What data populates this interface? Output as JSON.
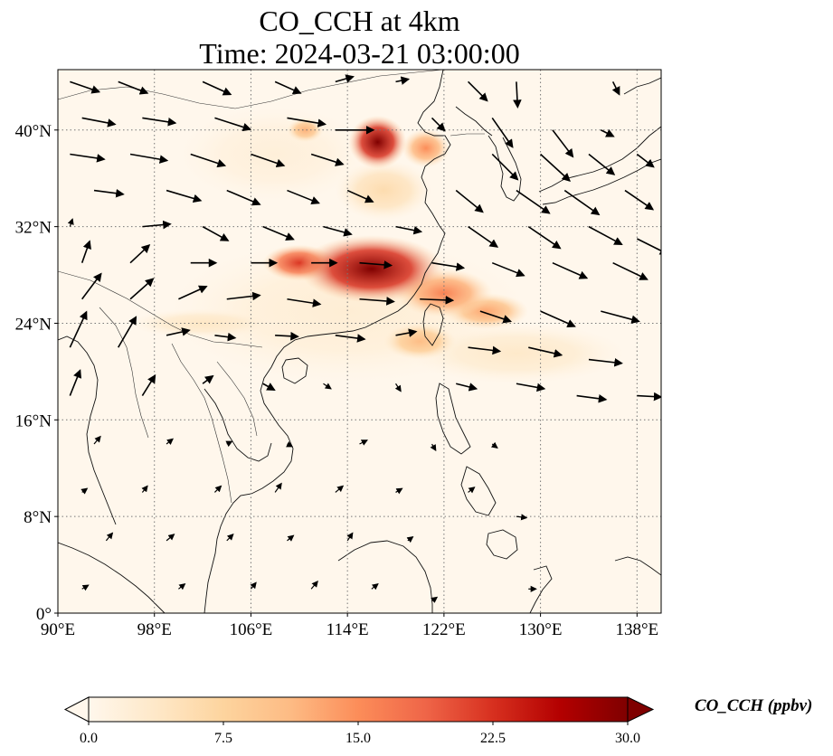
{
  "title": {
    "line1": "CO_CCH at 4km",
    "line2": "Time: 2024-03-21 03:00:00"
  },
  "map": {
    "lon_range": [
      90,
      140
    ],
    "lat_range": [
      0,
      45
    ],
    "lon_ticks": [
      {
        "value": 90,
        "label": "90°E"
      },
      {
        "value": 98,
        "label": "98°E"
      },
      {
        "value": 106,
        "label": "106°E"
      },
      {
        "value": 114,
        "label": "114°E"
      },
      {
        "value": 122,
        "label": "122°E"
      },
      {
        "value": 130,
        "label": "130°E"
      },
      {
        "value": 138,
        "label": "138°E"
      }
    ],
    "lat_ticks": [
      {
        "value": 0,
        "label": "0°"
      },
      {
        "value": 8,
        "label": "8°N"
      },
      {
        "value": 16,
        "label": "16°N"
      },
      {
        "value": 24,
        "label": "24°N"
      },
      {
        "value": 32,
        "label": "32°N"
      },
      {
        "value": 40,
        "label": "40°N"
      }
    ],
    "gridlines": "dotted",
    "plumes": [
      {
        "lon": 116.5,
        "lat": 39.0,
        "rlon": 2.4,
        "rlat": 2.2,
        "value": 30
      },
      {
        "lon": 120.5,
        "lat": 38.5,
        "rlon": 2.0,
        "rlat": 1.6,
        "value": 15
      },
      {
        "lon": 110.5,
        "lat": 40.0,
        "rlon": 1.5,
        "rlat": 1.0,
        "value": 12
      },
      {
        "lon": 116.0,
        "lat": 28.5,
        "rlon": 6.0,
        "rlat": 2.8,
        "value": 30
      },
      {
        "lon": 110.0,
        "lat": 29.0,
        "rlon": 3.0,
        "rlat": 1.5,
        "value": 22
      },
      {
        "lon": 122.0,
        "lat": 26.5,
        "rlon": 4.0,
        "rlat": 2.0,
        "value": 16
      },
      {
        "lon": 125.5,
        "lat": 25.0,
        "rlon": 3.5,
        "rlat": 1.5,
        "value": 13
      },
      {
        "lon": 120.0,
        "lat": 22.5,
        "rlon": 3.0,
        "rlat": 1.5,
        "value": 11
      },
      {
        "lon": 117.0,
        "lat": 35.0,
        "rlon": 4.0,
        "rlat": 2.5,
        "value": 6
      },
      {
        "lon": 102.0,
        "lat": 24.0,
        "rlon": 6.0,
        "rlat": 1.2,
        "value": 4
      },
      {
        "lon": 128.0,
        "lat": 21.5,
        "rlon": 9.0,
        "rlat": 2.5,
        "value": 3.5
      },
      {
        "lon": 114.0,
        "lat": 25.0,
        "rlon": 15.0,
        "rlat": 6.0,
        "value": 2.5
      },
      {
        "lon": 108.0,
        "lat": 38.0,
        "rlon": 8.0,
        "rlat": 4.0,
        "value": 2
      }
    ],
    "wind_vectors": [
      {
        "lon": 91,
        "lat": 44,
        "u": 2.3,
        "v": -0.8
      },
      {
        "lon": 95,
        "lat": 44,
        "u": 2.3,
        "v": -0.9
      },
      {
        "lon": 102,
        "lat": 44,
        "u": 2.2,
        "v": -1.0
      },
      {
        "lon": 108,
        "lat": 44,
        "u": 2.0,
        "v": -0.9
      },
      {
        "lon": 113,
        "lat": 44,
        "u": 1.4,
        "v": 0.4
      },
      {
        "lon": 118,
        "lat": 44,
        "u": 1.0,
        "v": 0.2
      },
      {
        "lon": 124,
        "lat": 44,
        "u": 1.5,
        "v": -1.5
      },
      {
        "lon": 128,
        "lat": 44,
        "u": 0.1,
        "v": -2.0
      },
      {
        "lon": 136,
        "lat": 44,
        "u": 0.5,
        "v": -1.0
      },
      {
        "lon": 92,
        "lat": 41,
        "u": 2.6,
        "v": -0.5
      },
      {
        "lon": 97,
        "lat": 41,
        "u": 2.6,
        "v": -0.4
      },
      {
        "lon": 103,
        "lat": 41,
        "u": 2.8,
        "v": -0.9
      },
      {
        "lon": 109,
        "lat": 41,
        "u": 3.0,
        "v": -0.5
      },
      {
        "lon": 113,
        "lat": 40,
        "u": 3.0,
        "v": 0.0
      },
      {
        "lon": 121,
        "lat": 41,
        "u": 1.0,
        "v": -1.0
      },
      {
        "lon": 126,
        "lat": 41,
        "u": 1.6,
        "v": -2.3
      },
      {
        "lon": 131,
        "lat": 40,
        "u": 1.6,
        "v": -2.1
      },
      {
        "lon": 135,
        "lat": 40,
        "u": 1.0,
        "v": -0.5
      },
      {
        "lon": 91,
        "lat": 38,
        "u": 2.7,
        "v": -0.4
      },
      {
        "lon": 96,
        "lat": 38,
        "u": 2.9,
        "v": -0.5
      },
      {
        "lon": 101,
        "lat": 38,
        "u": 2.7,
        "v": -0.9
      },
      {
        "lon": 106,
        "lat": 38,
        "u": 2.6,
        "v": -0.9
      },
      {
        "lon": 111,
        "lat": 38,
        "u": 2.5,
        "v": -0.8
      },
      {
        "lon": 126,
        "lat": 38,
        "u": 2.0,
        "v": -2.0
      },
      {
        "lon": 130,
        "lat": 38,
        "u": 2.3,
        "v": -2.1
      },
      {
        "lon": 134,
        "lat": 38,
        "u": 2.0,
        "v": -1.6
      },
      {
        "lon": 138,
        "lat": 38,
        "u": 1.3,
        "v": -1.0
      },
      {
        "lon": 93,
        "lat": 35,
        "u": 2.3,
        "v": -0.3
      },
      {
        "lon": 99,
        "lat": 35,
        "u": 2.7,
        "v": -0.8
      },
      {
        "lon": 104,
        "lat": 35,
        "u": 2.6,
        "v": -1.1
      },
      {
        "lon": 109,
        "lat": 35,
        "u": 2.5,
        "v": -1.0
      },
      {
        "lon": 114,
        "lat": 35,
        "u": 2.0,
        "v": -0.9
      },
      {
        "lon": 123,
        "lat": 35,
        "u": 2.1,
        "v": -1.7
      },
      {
        "lon": 128,
        "lat": 35,
        "u": 2.6,
        "v": -1.8
      },
      {
        "lon": 132,
        "lat": 35,
        "u": 2.7,
        "v": -1.9
      },
      {
        "lon": 137,
        "lat": 35,
        "u": 2.2,
        "v": -1.5
      },
      {
        "lon": 91,
        "lat": 32,
        "u": 0.2,
        "v": 0.6
      },
      {
        "lon": 97,
        "lat": 32,
        "u": 2.2,
        "v": 0.2
      },
      {
        "lon": 102,
        "lat": 32,
        "u": 2.0,
        "v": -1.1
      },
      {
        "lon": 107,
        "lat": 32,
        "u": 2.4,
        "v": -1.0
      },
      {
        "lon": 112,
        "lat": 32,
        "u": 2.2,
        "v": -0.6
      },
      {
        "lon": 118,
        "lat": 32,
        "u": 2.0,
        "v": -0.4
      },
      {
        "lon": 124,
        "lat": 32,
        "u": 2.3,
        "v": -1.6
      },
      {
        "lon": 129,
        "lat": 32,
        "u": 2.5,
        "v": -1.7
      },
      {
        "lon": 134,
        "lat": 32,
        "u": 2.6,
        "v": -1.4
      },
      {
        "lon": 138,
        "lat": 31,
        "u": 2.4,
        "v": -1.2
      },
      {
        "lon": 92,
        "lat": 29,
        "u": 0.6,
        "v": 1.7
      },
      {
        "lon": 96,
        "lat": 29,
        "u": 1.5,
        "v": 1.4
      },
      {
        "lon": 101,
        "lat": 29,
        "u": 2.0,
        "v": 0.0
      },
      {
        "lon": 106,
        "lat": 29,
        "u": 2.0,
        "v": 0.0
      },
      {
        "lon": 111,
        "lat": 29,
        "u": 2.0,
        "v": 0.0
      },
      {
        "lon": 115,
        "lat": 29,
        "u": 2.5,
        "v": -0.2
      },
      {
        "lon": 121,
        "lat": 29,
        "u": 2.5,
        "v": -0.4
      },
      {
        "lon": 126,
        "lat": 29,
        "u": 2.5,
        "v": -1.0
      },
      {
        "lon": 131,
        "lat": 29,
        "u": 2.7,
        "v": -1.2
      },
      {
        "lon": 136,
        "lat": 29,
        "u": 2.7,
        "v": -1.3
      },
      {
        "lon": 92,
        "lat": 26,
        "u": 1.5,
        "v": 2.0
      },
      {
        "lon": 96,
        "lat": 26,
        "u": 1.8,
        "v": 1.6
      },
      {
        "lon": 100,
        "lat": 26,
        "u": 2.2,
        "v": 1.0
      },
      {
        "lon": 104,
        "lat": 26,
        "u": 2.6,
        "v": 0.3
      },
      {
        "lon": 109,
        "lat": 26,
        "u": 2.6,
        "v": -0.4
      },
      {
        "lon": 115,
        "lat": 26,
        "u": 2.7,
        "v": -0.2
      },
      {
        "lon": 120,
        "lat": 26,
        "u": 2.6,
        "v": -0.1
      },
      {
        "lon": 125,
        "lat": 25,
        "u": 2.4,
        "v": -0.8
      },
      {
        "lon": 130,
        "lat": 25,
        "u": 2.7,
        "v": -1.2
      },
      {
        "lon": 135,
        "lat": 25,
        "u": 3.0,
        "v": -0.8
      },
      {
        "lon": 91,
        "lat": 22,
        "u": 1.3,
        "v": 2.8
      },
      {
        "lon": 95,
        "lat": 22,
        "u": 1.4,
        "v": 2.4
      },
      {
        "lon": 99,
        "lat": 23,
        "u": 1.8,
        "v": 0.4
      },
      {
        "lon": 103,
        "lat": 23,
        "u": 1.6,
        "v": -0.2
      },
      {
        "lon": 108,
        "lat": 23,
        "u": 1.8,
        "v": -0.1
      },
      {
        "lon": 113,
        "lat": 23,
        "u": 2.3,
        "v": -0.3
      },
      {
        "lon": 118,
        "lat": 23,
        "u": 1.6,
        "v": 0.3
      },
      {
        "lon": 124,
        "lat": 22,
        "u": 2.5,
        "v": -0.3
      },
      {
        "lon": 129,
        "lat": 22,
        "u": 2.6,
        "v": -0.6
      },
      {
        "lon": 134,
        "lat": 21,
        "u": 2.6,
        "v": -0.3
      },
      {
        "lon": 91,
        "lat": 18,
        "u": 0.8,
        "v": 2.0
      },
      {
        "lon": 97,
        "lat": 18,
        "u": 1.0,
        "v": 1.6
      },
      {
        "lon": 102,
        "lat": 19,
        "u": 0.8,
        "v": 0.6
      },
      {
        "lon": 107,
        "lat": 19,
        "u": 0.9,
        "v": -0.5
      },
      {
        "lon": 112,
        "lat": 19,
        "u": 0.6,
        "v": -0.4
      },
      {
        "lon": 118,
        "lat": 19,
        "u": 0.4,
        "v": -0.6
      },
      {
        "lon": 123,
        "lat": 19,
        "u": 1.6,
        "v": -0.4
      },
      {
        "lon": 128,
        "lat": 19,
        "u": 2.2,
        "v": -0.4
      },
      {
        "lon": 133,
        "lat": 18,
        "u": 2.3,
        "v": -0.3
      },
      {
        "lon": 138,
        "lat": 18,
        "u": 1.9,
        "v": -0.1
      },
      {
        "lon": 93,
        "lat": 14,
        "u": 0.5,
        "v": 0.6
      },
      {
        "lon": 99,
        "lat": 14,
        "u": 0.5,
        "v": 0.4
      },
      {
        "lon": 104,
        "lat": 14,
        "u": 0.4,
        "v": 0.2
      },
      {
        "lon": 109,
        "lat": 14,
        "u": 0.4,
        "v": -0.2
      },
      {
        "lon": 115,
        "lat": 14,
        "u": 0.6,
        "v": 0.3
      },
      {
        "lon": 121,
        "lat": 14,
        "u": 0.3,
        "v": -0.5
      },
      {
        "lon": 126,
        "lat": 14,
        "u": 0.4,
        "v": -0.3
      },
      {
        "lon": 92,
        "lat": 10,
        "u": 0.4,
        "v": 0.3
      },
      {
        "lon": 97,
        "lat": 10,
        "u": 0.4,
        "v": 0.5
      },
      {
        "lon": 103,
        "lat": 10,
        "u": 0.5,
        "v": 0.5
      },
      {
        "lon": 108,
        "lat": 10,
        "u": 0.5,
        "v": 0.7
      },
      {
        "lon": 113,
        "lat": 10,
        "u": 0.6,
        "v": 0.5
      },
      {
        "lon": 118,
        "lat": 10,
        "u": 0.5,
        "v": 0.3
      },
      {
        "lon": 124,
        "lat": 10,
        "u": 0.5,
        "v": 0.4
      },
      {
        "lon": 128,
        "lat": 8,
        "u": 0.8,
        "v": -0.1
      },
      {
        "lon": 94,
        "lat": 6,
        "u": 0.5,
        "v": 0.6
      },
      {
        "lon": 99,
        "lat": 6,
        "u": 0.6,
        "v": 0.5
      },
      {
        "lon": 104,
        "lat": 6,
        "u": 0.5,
        "v": 0.5
      },
      {
        "lon": 109,
        "lat": 6,
        "u": 0.5,
        "v": 0.4
      },
      {
        "lon": 114,
        "lat": 6,
        "u": 0.4,
        "v": 0.6
      },
      {
        "lon": 119,
        "lat": 6,
        "u": 0.4,
        "v": 0.3
      },
      {
        "lon": 92,
        "lat": 2,
        "u": 0.5,
        "v": 0.3
      },
      {
        "lon": 100,
        "lat": 2,
        "u": 0.5,
        "v": 0.4
      },
      {
        "lon": 106,
        "lat": 2,
        "u": 0.4,
        "v": 0.5
      },
      {
        "lon": 111,
        "lat": 2,
        "u": 0.5,
        "v": 0.6
      },
      {
        "lon": 116,
        "lat": 2,
        "u": 0.5,
        "v": 0.4
      },
      {
        "lon": 121,
        "lat": 1,
        "u": 0.4,
        "v": 0.3
      },
      {
        "lon": 129,
        "lat": 2,
        "u": 0.6,
        "v": 0.0
      }
    ]
  },
  "colorbar": {
    "title": "CO_CCH (ppbv)",
    "min": 0,
    "max": 30,
    "extend": "both",
    "colormap": "OrRd",
    "colors": [
      "#fff7ec",
      "#fee8c8",
      "#fdd49e",
      "#fdbb84",
      "#fc8d59",
      "#ef6548",
      "#d7301f",
      "#b30000",
      "#7f0000"
    ],
    "ticks": [
      {
        "value": 0,
        "label": "0.0"
      },
      {
        "value": 7.5,
        "label": "7.5"
      },
      {
        "value": 15,
        "label": "15.0"
      },
      {
        "value": 22.5,
        "label": "22.5"
      },
      {
        "value": 30,
        "label": "30.0"
      }
    ]
  }
}
